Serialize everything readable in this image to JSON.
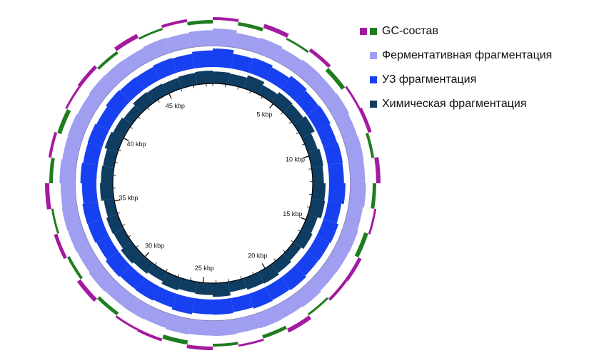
{
  "chart_data": {
    "type": "circular",
    "xlim": [
      0,
      48502
    ],
    "xticks": [
      {
        "value": 5000,
        "label": "5 kbp"
      },
      {
        "value": 10000,
        "label": "10 kbp"
      },
      {
        "value": 15000,
        "label": "15 kbp"
      },
      {
        "value": 20000,
        "label": "20 kbp"
      },
      {
        "value": 25000,
        "label": "25 kbp"
      },
      {
        "value": 30000,
        "label": "30 kbp"
      },
      {
        "value": 35000,
        "label": "35 kbp"
      },
      {
        "value": 40000,
        "label": "40 kbp"
      },
      {
        "value": 45000,
        "label": "45 kbp"
      }
    ],
    "minor_tick_step": 1000,
    "ylim": [
      0,
      1
    ],
    "series": [
      {
        "name": "GC-состав",
        "color": [
          "#a3199f",
          "#1f7d1f"
        ],
        "values": [
          0.4,
          -0.5,
          0.6,
          -0.3,
          0.5,
          -0.6,
          0.3,
          0.5,
          -0.4,
          0.6,
          -0.5,
          0.3,
          -0.6,
          0.5,
          0.4,
          -0.3,
          0.6,
          -0.5,
          0.3,
          -0.4,
          0.5,
          -0.6,
          0.4,
          0.3,
          -0.5,
          0.6,
          -0.4,
          0.5,
          -0.3,
          0.6,
          -0.5,
          0.4,
          -0.6,
          0.3,
          0.5,
          -0.4,
          0.6,
          -0.3,
          0.4,
          -0.5
        ]
      },
      {
        "name": "Ферментативная фрагментация",
        "color": "#a09ef0",
        "values": [
          1.0,
          0.85,
          0.9,
          0.82,
          0.88,
          0.86,
          0.9,
          0.84,
          0.87,
          0.85,
          0.9,
          0.83,
          0.88,
          0.86,
          0.84,
          0.9,
          0.85,
          0.87,
          0.83,
          0.88,
          0.86,
          0.9,
          0.84,
          0.87,
          0.85,
          0.89,
          0.83,
          0.86,
          0.88,
          0.84,
          0.9,
          0.85,
          0.87,
          0.83,
          0.88,
          0.86,
          0.84,
          0.89,
          0.85,
          0.9
        ]
      },
      {
        "name": "УЗ фрагментация",
        "color": "#1640f0",
        "values": [
          1.0,
          0.8,
          0.85,
          0.75,
          0.9,
          0.8,
          0.85,
          0.78,
          0.82,
          0.8,
          0.88,
          0.75,
          0.85,
          0.8,
          0.78,
          0.86,
          0.8,
          0.84,
          0.76,
          0.82,
          0.8,
          0.88,
          0.78,
          0.83,
          0.8,
          0.86,
          0.76,
          0.82,
          0.84,
          0.78,
          0.86,
          0.8,
          0.82,
          0.76,
          0.85,
          0.8,
          0.78,
          0.84,
          0.8,
          0.9
        ]
      },
      {
        "name": "Химическая фрагментация",
        "color": "#0f3d62",
        "values": [
          0.7,
          0.65,
          0.8,
          0.6,
          0.75,
          0.7,
          0.85,
          0.6,
          0.7,
          0.65,
          0.75,
          0.8,
          0.6,
          0.7,
          0.55,
          0.65,
          0.75,
          0.7,
          0.6,
          0.8,
          0.7,
          0.65,
          0.75,
          0.6,
          0.7,
          0.8,
          0.65,
          0.7,
          0.6,
          0.75,
          0.7,
          0.65,
          0.8,
          0.7,
          0.6,
          0.75,
          0.7,
          0.65,
          0.7,
          0.75
        ]
      }
    ]
  }
}
